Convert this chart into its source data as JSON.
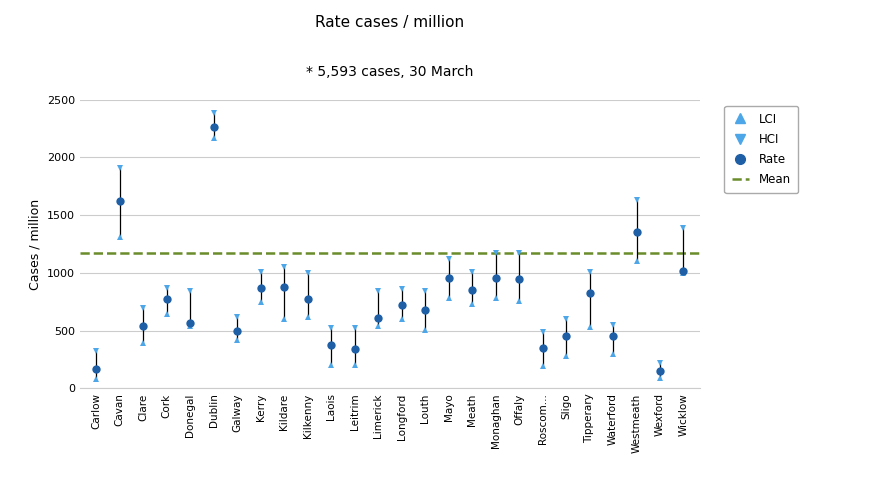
{
  "title": "Rate cases / million",
  "subtitle": "* 5,593 cases, 30 March",
  "ylabel": "Cases / million",
  "mean": 1170,
  "ylim": [
    0,
    2500
  ],
  "yticks": [
    0,
    500,
    1000,
    1500,
    2000,
    2500
  ],
  "counties": [
    "Carlow",
    "Cavan",
    "Clare",
    "Cork",
    "Donegal",
    "Dublin",
    "Galway",
    "Kerry",
    "Kildare",
    "Kilkenny",
    "Laois",
    "Leitrim",
    "Limerick",
    "Longford",
    "Louth",
    "Mayo",
    "Meath",
    "Monaghan",
    "Offaly",
    "Roscom...",
    "Sligo",
    "Tipperary",
    "Waterford",
    "Westmeath",
    "Wexford",
    "Wicklow"
  ],
  "rate": [
    170,
    1620,
    540,
    770,
    570,
    2260,
    500,
    870,
    880,
    770,
    380,
    340,
    610,
    720,
    680,
    960,
    850,
    960,
    950,
    350,
    450,
    830,
    450,
    1350,
    155,
    1020
  ],
  "lci": [
    80,
    1310,
    390,
    640,
    540,
    2170,
    420,
    750,
    600,
    620,
    200,
    200,
    540,
    600,
    510,
    780,
    730,
    780,
    760,
    190,
    280,
    530,
    300,
    1100,
    90,
    1000
  ],
  "hci": [
    320,
    1910,
    700,
    870,
    840,
    2380,
    620,
    1010,
    1050,
    1000,
    520,
    520,
    840,
    860,
    840,
    1120,
    1010,
    1170,
    1170,
    490,
    600,
    1010,
    550,
    1630,
    220,
    1390
  ],
  "dot_color": "#1f5fa6",
  "triangle_color": "#4da6e8",
  "line_color": "black",
  "mean_color": "#6a8c2a",
  "background_color": "white",
  "grid_color": "#cccccc"
}
